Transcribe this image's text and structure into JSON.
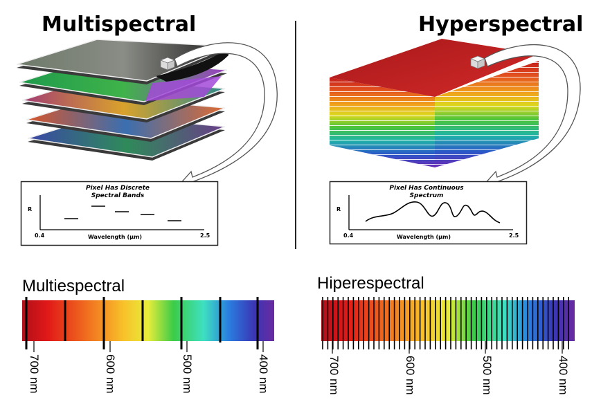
{
  "multispectral": {
    "title": "Multispectral",
    "plot_title_line1": "Pixel Has Discrete",
    "plot_title_line2": "Spectral Bands",
    "axis_y": "R",
    "axis_x": "Wavelength (μm)",
    "x_min": "0.4",
    "x_max": "2.5"
  },
  "hyperspectral": {
    "title": "Hyperspectral",
    "plot_title_line1": "Pixel Has Continuous",
    "plot_title_line2": "Spectrum",
    "axis_y": "R",
    "axis_x": "Wavelength (μm)",
    "x_min": "0.4",
    "x_max": "2.5"
  },
  "bottom_left": {
    "label": "Multiespectral",
    "ticks": [
      "700 nm",
      "600 nm",
      "500 nm",
      "400 nm"
    ]
  },
  "bottom_right": {
    "label": "Hiperespectral",
    "ticks": [
      "700 nm",
      "600 nm",
      "500 nm",
      "400 nm"
    ]
  }
}
